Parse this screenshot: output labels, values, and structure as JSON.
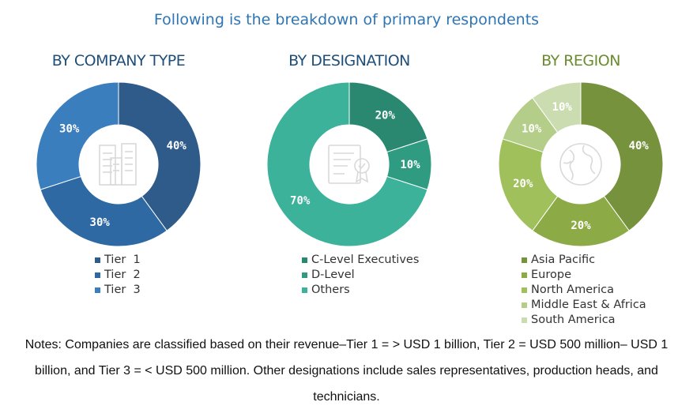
{
  "title": "Following is the breakdown of primary respondents",
  "notes": "Notes: Companies are classified based on their revenue–Tier 1 = > USD 1 billion, Tier 2 = USD 500 million– USD 1 billion, and Tier 3 = < USD 500 million. Other designations include sales representatives, production heads, and technicians.",
  "colors": {
    "company_title": "#1f4e79",
    "designation_title": "#1f4e79",
    "region_title": "#6a8c2e"
  },
  "icons": [
    "buildings-icon",
    "certificate-icon",
    "globe-icon"
  ],
  "chart_data": [
    {
      "type": "pie",
      "title": "BY COMPANY TYPE",
      "categories": [
        "Tier  1",
        "Tier  2",
        "Tier  3"
      ],
      "values": [
        40,
        30,
        30
      ],
      "data_labels": [
        "40%",
        "30%",
        "30%"
      ],
      "colors": [
        "#2f5b8a",
        "#2f69a3",
        "#3a7ebe"
      ],
      "legend": "bottom",
      "donut": true
    },
    {
      "type": "pie",
      "title": "BY DESIGNATION",
      "categories": [
        "C-Level Executives",
        "D-Level",
        "Others"
      ],
      "values": [
        20,
        10,
        70
      ],
      "data_labels": [
        "20%",
        "10%",
        "70%"
      ],
      "colors": [
        "#2a8770",
        "#2f9b80",
        "#3cb29a"
      ],
      "legend": "bottom",
      "donut": true
    },
    {
      "type": "pie",
      "title": "BY REGION",
      "categories": [
        "Asia Pacific",
        "Europe",
        "North America",
        "Middle East & Africa",
        "South America"
      ],
      "values": [
        40,
        20,
        20,
        10,
        10
      ],
      "data_labels": [
        "40%",
        "20%",
        "20%",
        "10%",
        "10%"
      ],
      "colors": [
        "#76923c",
        "#8caa46",
        "#9fc05a",
        "#b4ce8a",
        "#cbdcb0"
      ],
      "legend": "bottom",
      "donut": true
    }
  ]
}
